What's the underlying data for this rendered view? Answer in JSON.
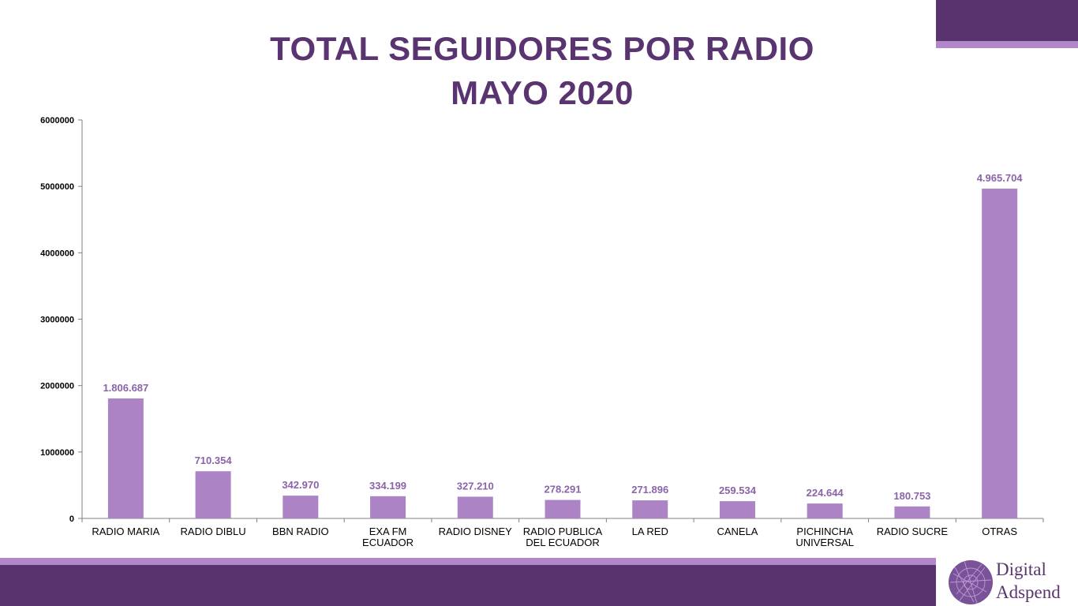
{
  "title_line1": "TOTAL SEGUIDORES POR RADIO",
  "title_line2": "MAYO 2020",
  "logo": {
    "line1": "Digital",
    "line2": "Adspend"
  },
  "colors": {
    "bar": "#ac84c6",
    "brand_dark": "#59336e",
    "brand_light": "#b187c9",
    "data_label": "#8a63a8"
  },
  "chart_data": {
    "type": "bar",
    "categories": [
      [
        "RADIO MARIA"
      ],
      [
        "RADIO DIBLU"
      ],
      [
        "BBN RADIO"
      ],
      [
        "EXA FM",
        "ECUADOR"
      ],
      [
        "RADIO DISNEY"
      ],
      [
        "RADIO PUBLICA",
        "DEL ECUADOR"
      ],
      [
        "LA RED"
      ],
      [
        "CANELA"
      ],
      [
        "PICHINCHA",
        "UNIVERSAL"
      ],
      [
        "RADIO SUCRE"
      ],
      [
        "OTRAS"
      ]
    ],
    "values": [
      1806687,
      710354,
      342970,
      334199,
      327210,
      278291,
      271896,
      259534,
      224644,
      180753,
      4965704
    ],
    "data_labels": [
      "1.806.687",
      "710.354",
      "342.970",
      "334.199",
      "327.210",
      "278.291",
      "271.896",
      "259.534",
      "224.644",
      "180.753",
      "4.965.704"
    ],
    "y_ticks": [
      "0",
      "1000000",
      "2000000",
      "3000000",
      "4000000",
      "5000000",
      "6000000"
    ],
    "ylim": [
      0,
      6000000
    ],
    "grid": false,
    "legend": "none"
  }
}
